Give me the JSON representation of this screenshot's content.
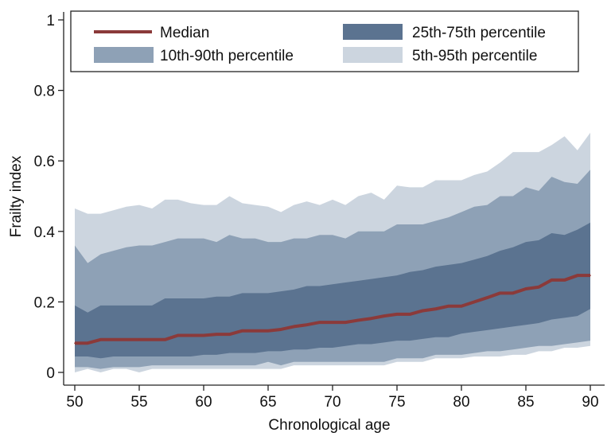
{
  "chart_data": {
    "type": "area",
    "title": "",
    "xlabel": "Chronological age",
    "ylabel": "Frailty index",
    "xlim": [
      50,
      90
    ],
    "ylim": [
      0,
      1
    ],
    "xticks": [
      50,
      55,
      60,
      65,
      70,
      75,
      80,
      85,
      90
    ],
    "yticks": [
      0,
      0.2,
      0.4,
      0.6,
      0.8,
      1
    ],
    "ytick_labels": [
      "0",
      "0.2",
      "0.4",
      "0.6",
      "0.8",
      "1"
    ],
    "grid": false,
    "legend_position": "top",
    "x": [
      50,
      51,
      52,
      53,
      54,
      55,
      56,
      57,
      58,
      59,
      60,
      61,
      62,
      63,
      64,
      65,
      66,
      67,
      68,
      69,
      70,
      71,
      72,
      73,
      74,
      75,
      76,
      77,
      78,
      79,
      80,
      81,
      82,
      83,
      84,
      85,
      86,
      87,
      88,
      89,
      90
    ],
    "median": [
      0.083,
      0.083,
      0.093,
      0.093,
      0.093,
      0.093,
      0.093,
      0.093,
      0.105,
      0.105,
      0.105,
      0.108,
      0.108,
      0.118,
      0.118,
      0.118,
      0.122,
      0.13,
      0.135,
      0.142,
      0.142,
      0.142,
      0.148,
      0.153,
      0.16,
      0.165,
      0.165,
      0.175,
      0.18,
      0.188,
      0.188,
      0.2,
      0.212,
      0.225,
      0.225,
      0.237,
      0.242,
      0.262,
      0.262,
      0.275,
      0.275
    ],
    "bands": [
      {
        "name": "5th-95th percentile",
        "color": "#ccd5df",
        "lower": [
          0.0,
          0.01,
          0.0,
          0.01,
          0.01,
          0.0,
          0.01,
          0.01,
          0.01,
          0.01,
          0.01,
          0.01,
          0.01,
          0.01,
          0.01,
          0.01,
          0.01,
          0.02,
          0.02,
          0.02,
          0.02,
          0.02,
          0.02,
          0.02,
          0.02,
          0.03,
          0.03,
          0.03,
          0.04,
          0.04,
          0.04,
          0.045,
          0.045,
          0.045,
          0.05,
          0.05,
          0.06,
          0.06,
          0.07,
          0.07,
          0.075
        ],
        "upper": [
          0.465,
          0.45,
          0.45,
          0.46,
          0.47,
          0.475,
          0.465,
          0.49,
          0.49,
          0.48,
          0.475,
          0.475,
          0.5,
          0.48,
          0.475,
          0.47,
          0.455,
          0.475,
          0.485,
          0.475,
          0.49,
          0.475,
          0.5,
          0.51,
          0.49,
          0.53,
          0.525,
          0.525,
          0.545,
          0.545,
          0.545,
          0.56,
          0.57,
          0.595,
          0.625,
          0.625,
          0.625,
          0.645,
          0.67,
          0.63,
          0.68
        ]
      },
      {
        "name": "10th-90th percentile",
        "color": "#8ea1b6",
        "lower": [
          0.015,
          0.015,
          0.01,
          0.015,
          0.015,
          0.015,
          0.02,
          0.02,
          0.02,
          0.02,
          0.02,
          0.02,
          0.02,
          0.02,
          0.02,
          0.03,
          0.02,
          0.03,
          0.03,
          0.03,
          0.03,
          0.03,
          0.03,
          0.03,
          0.03,
          0.04,
          0.04,
          0.04,
          0.05,
          0.05,
          0.05,
          0.055,
          0.06,
          0.06,
          0.065,
          0.07,
          0.075,
          0.075,
          0.08,
          0.085,
          0.09
        ],
        "upper": [
          0.36,
          0.31,
          0.335,
          0.345,
          0.355,
          0.36,
          0.36,
          0.37,
          0.38,
          0.38,
          0.38,
          0.37,
          0.39,
          0.38,
          0.38,
          0.37,
          0.37,
          0.38,
          0.38,
          0.39,
          0.39,
          0.38,
          0.4,
          0.4,
          0.4,
          0.42,
          0.42,
          0.42,
          0.43,
          0.44,
          0.455,
          0.47,
          0.475,
          0.5,
          0.5,
          0.525,
          0.515,
          0.555,
          0.54,
          0.535,
          0.575
        ]
      },
      {
        "name": "25th-75th percentile",
        "color": "#5b7390",
        "lower": [
          0.045,
          0.045,
          0.04,
          0.045,
          0.045,
          0.045,
          0.045,
          0.045,
          0.045,
          0.045,
          0.05,
          0.05,
          0.055,
          0.055,
          0.055,
          0.06,
          0.06,
          0.065,
          0.065,
          0.07,
          0.07,
          0.075,
          0.08,
          0.08,
          0.085,
          0.09,
          0.09,
          0.095,
          0.1,
          0.1,
          0.11,
          0.115,
          0.12,
          0.125,
          0.13,
          0.135,
          0.14,
          0.15,
          0.155,
          0.16,
          0.18
        ],
        "upper": [
          0.19,
          0.17,
          0.19,
          0.19,
          0.19,
          0.19,
          0.19,
          0.21,
          0.21,
          0.21,
          0.21,
          0.215,
          0.215,
          0.225,
          0.225,
          0.225,
          0.23,
          0.235,
          0.245,
          0.245,
          0.25,
          0.255,
          0.26,
          0.265,
          0.27,
          0.275,
          0.285,
          0.29,
          0.3,
          0.305,
          0.31,
          0.32,
          0.33,
          0.345,
          0.355,
          0.37,
          0.375,
          0.395,
          0.39,
          0.405,
          0.425
        ]
      }
    ],
    "legend": [
      {
        "label": "Median",
        "kind": "line",
        "color": "#8b3a3a"
      },
      {
        "label": "25th-75th percentile",
        "kind": "box",
        "color": "#5b7390"
      },
      {
        "label": "10th-90th percentile",
        "kind": "box",
        "color": "#8ea1b6"
      },
      {
        "label": "5th-95th percentile",
        "kind": "box",
        "color": "#ccd5df"
      }
    ],
    "median_color": "#8b3a3a",
    "axis_color": "#222222"
  }
}
